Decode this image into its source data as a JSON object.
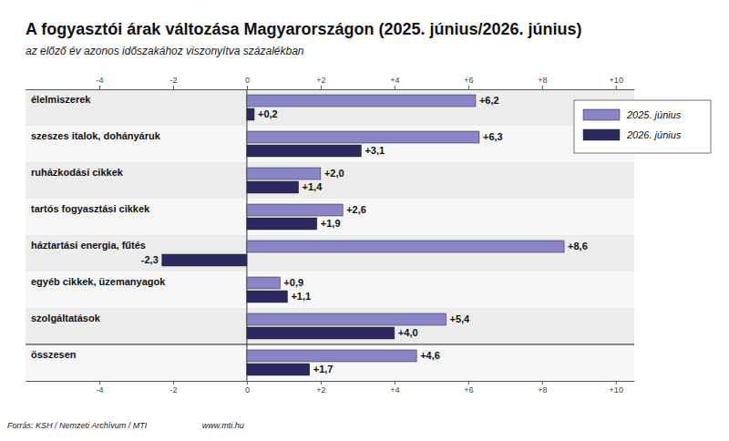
{
  "chart_data": {
    "type": "bar",
    "orientation": "horizontal",
    "title": "A fogyasztói árak változása Magyarországon (2025. június/2026. június)",
    "subtitle": "az előző év azonos időszakához viszonyítva százalékban",
    "source": "Forrás: KSH / Nemzeti Archívum / MTI",
    "website": "www.mti.hu",
    "categories": [
      "élelmiszerek",
      "szeszes italok, dohányáruk",
      "ruházkodási cikkek",
      "tartós fogyasztási cikkek",
      "háztartási energia, fűtés",
      "egyéb cikkek, üzemanyagok",
      "szolgáltatások",
      "összesen"
    ],
    "series": [
      {
        "name": "2025. június",
        "color": "#8a85c6",
        "values": [
          6.2,
          6.3,
          2.0,
          2.6,
          8.6,
          0.9,
          5.4,
          4.6
        ],
        "value_labels": [
          "+6,2",
          "+6,3",
          "+2,0",
          "+2,6",
          "+8,6",
          "+0,9",
          "+5,4",
          "+4,6"
        ]
      },
      {
        "name": "2026. június",
        "color": "#2b2a5e",
        "values": [
          0.2,
          3.1,
          1.4,
          1.9,
          -2.3,
          1.1,
          4.0,
          1.7
        ],
        "value_labels": [
          "+0,2",
          "+3,1",
          "+1,4",
          "+1,9",
          "-2,3",
          "+1,1",
          "+4,0",
          "+1,7"
        ]
      }
    ],
    "xlim": [
      -6,
      10.5
    ],
    "xticks": [
      -4,
      -2,
      0,
      {
        "value": 2,
        "label": "+2"
      },
      {
        "value": 4,
        "label": "+4"
      },
      {
        "value": 6,
        "label": "+6"
      },
      {
        "value": 8,
        "label": "+8"
      },
      {
        "value": 10,
        "label": "+10"
      }
    ],
    "grid": false,
    "data_labels": true,
    "legend": "top-right"
  }
}
